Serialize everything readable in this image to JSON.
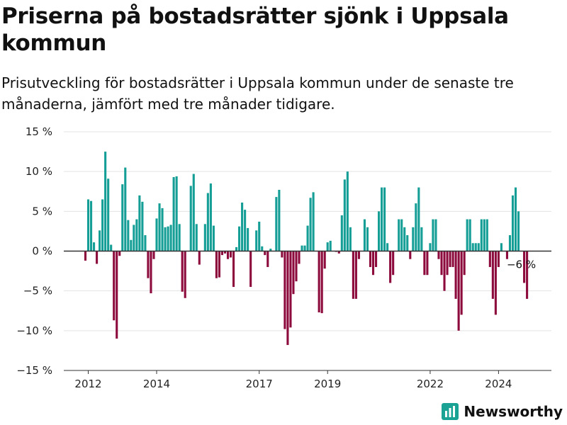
{
  "title": "Priserna på bostadsrätter sjönk i Uppsala kommun",
  "subtitle": "Prisutveckling för bostadsrätter i Uppsala kommun under de senaste tre månaderna, jämfört med tre månader tidigare.",
  "brand": {
    "name": "Newsworthy",
    "color": "#1aa394"
  },
  "colors": {
    "positive": "#149e96",
    "negative": "#8c0b3c"
  },
  "chart_data": {
    "type": "bar",
    "start": "2011-12",
    "frequency": "monthly",
    "ylim": [
      -15,
      15
    ],
    "yticks": [
      15,
      10,
      5,
      0,
      -5,
      -10,
      -15
    ],
    "ytick_labels": [
      "15 %",
      "10 %",
      "5 %",
      "0 %",
      "−5 %",
      "−10 %",
      "−15 %"
    ],
    "xticks": [
      "2012",
      "2014",
      "2017",
      "2019",
      "2022",
      "2024"
    ],
    "annotations": [
      {
        "x": "2024-09",
        "text": "−6 %"
      }
    ],
    "grid": "horizontal",
    "legend": "none",
    "values": [
      -1.2,
      6.5,
      6.3,
      1.1,
      -1.6,
      2.6,
      6.5,
      12.5,
      9.1,
      0.8,
      -8.7,
      -11.0,
      -0.6,
      8.4,
      10.5,
      3.9,
      1.4,
      3.3,
      4.0,
      7.0,
      6.2,
      2.0,
      -3.4,
      -5.3,
      -1.0,
      4.1,
      6.0,
      5.4,
      3.0,
      3.1,
      3.3,
      9.3,
      9.4,
      3.4,
      -5.1,
      -5.9,
      0.0,
      8.2,
      9.7,
      3.4,
      -1.7,
      0.0,
      3.4,
      7.3,
      8.5,
      3.2,
      -3.4,
      -3.3,
      -0.5,
      -0.3,
      -1.0,
      -0.8,
      -4.5,
      0.5,
      3.1,
      6.1,
      5.2,
      2.9,
      -4.5,
      0.0,
      2.6,
      3.7,
      0.6,
      -0.5,
      -2.0,
      0.3,
      0.0,
      6.8,
      7.7,
      -0.8,
      -9.8,
      -11.8,
      -9.6,
      -5.4,
      -3.8,
      -1.6,
      0.7,
      0.7,
      3.2,
      6.7,
      7.4,
      0.0,
      -7.7,
      -7.8,
      -2.2,
      1.1,
      1.3,
      0.0,
      -0.1,
      -0.3,
      4.5,
      9.0,
      10.0,
      3.0,
      -6.0,
      -6.0,
      -1.0,
      0.0,
      4.0,
      3.0,
      -2.0,
      -3.0,
      -2.0,
      5.0,
      8.0,
      8.0,
      1.0,
      -4.0,
      -3.0,
      0.0,
      4.0,
      4.0,
      3.0,
      2.0,
      -1.0,
      3.0,
      6.0,
      8.0,
      3.0,
      -3.0,
      -3.0,
      1.0,
      4.0,
      4.0,
      -1.0,
      -3.0,
      -5.0,
      -3.0,
      -2.0,
      -2.0,
      -6.0,
      -10.0,
      -8.0,
      -3.0,
      4.0,
      4.0,
      1.0,
      1.0,
      1.0,
      4.0,
      4.0,
      4.0,
      -2.0,
      -6.0,
      -8.0,
      -2.0,
      1.0,
      0.0,
      -1.0,
      2.0,
      7.0,
      8.0,
      5.0,
      0.0,
      -4.0,
      -6.0
    ]
  }
}
